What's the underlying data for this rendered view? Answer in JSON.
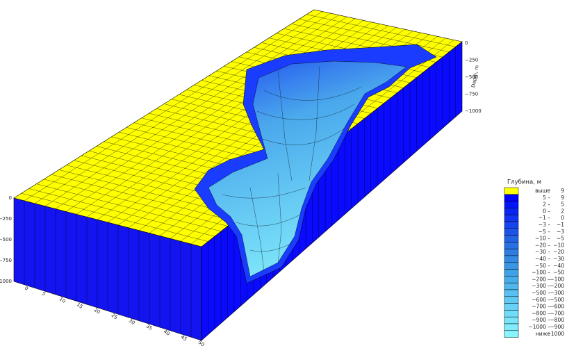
{
  "legend": {
    "title": "Глубина, м",
    "rows": [
      {
        "color": "#ffff00",
        "from": "выше",
        "to": "9"
      },
      {
        "color": "#0000ff",
        "from": "5 –",
        "to": "9"
      },
      {
        "color": "#0414fb",
        "from": "2 –",
        "to": "5"
      },
      {
        "color": "#0a24f6",
        "from": "0 –",
        "to": "2"
      },
      {
        "color": "#1034f2",
        "from": "−1 –",
        "to": "0"
      },
      {
        "color": "#1644ee",
        "from": "−3 –",
        "to": "−1"
      },
      {
        "color": "#1c54ea",
        "from": "−5 –",
        "to": "−3"
      },
      {
        "color": "#2262e6",
        "from": "−10 –",
        "to": "−5"
      },
      {
        "color": "#2870e4",
        "from": "−20 –",
        "to": "−10"
      },
      {
        "color": "#2e7ee2",
        "from": "−30 –",
        "to": "−20"
      },
      {
        "color": "#348ae2",
        "from": "−40 –",
        "to": "−30"
      },
      {
        "color": "#3a96e4",
        "from": "−50 –",
        "to": "−40"
      },
      {
        "color": "#40a2e6",
        "from": "−100 –",
        "to": "−50"
      },
      {
        "color": "#48acea",
        "from": "−200 –",
        "to": "−100"
      },
      {
        "color": "#50b6ee",
        "from": "−300 –",
        "to": "−200"
      },
      {
        "color": "#58c0f2",
        "from": "−500 –",
        "to": "−300"
      },
      {
        "color": "#60caf4",
        "from": "−600 –",
        "to": "−500"
      },
      {
        "color": "#68d2f6",
        "from": "−700 –",
        "to": "−600"
      },
      {
        "color": "#70dcf8",
        "from": "−800 –",
        "to": "−700"
      },
      {
        "color": "#78e4fa",
        "from": "−900 –",
        "to": "−800"
      },
      {
        "color": "#80ecfc",
        "from": "−1000 –",
        "to": "−900"
      },
      {
        "color": "#88f4fe",
        "from": "ниже",
        "to": "−1000"
      }
    ]
  },
  "axes": {
    "front": [
      "0",
      "5",
      "10",
      "15",
      "20",
      "25",
      "30",
      "35",
      "40",
      "45",
      "50"
    ],
    "left_depth": [
      "0",
      "−250",
      "−500",
      "−750",
      "−1000"
    ],
    "right_depth": [
      "0",
      "−250",
      "−500",
      "−750",
      "−1000"
    ],
    "right_depth_title": "Depth, m"
  }
}
